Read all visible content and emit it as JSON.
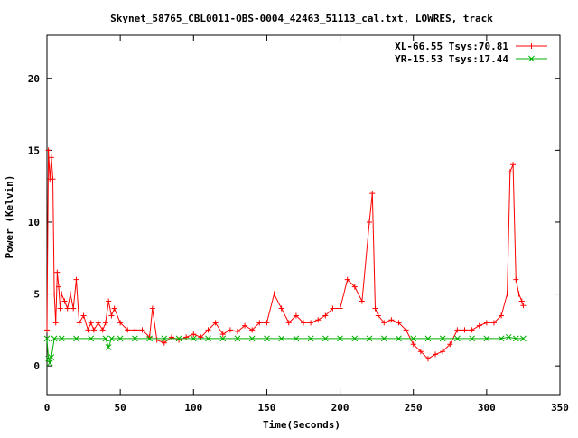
{
  "chart_data": {
    "type": "line",
    "title": "Skynet_58765_CBL0011-OBS-0004_42463_51113_cal.txt, LOWRES, track",
    "xlabel": "Time(Seconds)",
    "ylabel": "Power (Kelvin)",
    "xlim": [
      0,
      350
    ],
    "ylim": [
      -2,
      23
    ],
    "xticks": [
      0,
      50,
      100,
      150,
      200,
      250,
      300,
      350
    ],
    "yticks": [
      0,
      5,
      10,
      15,
      20
    ],
    "grid": false,
    "legend_position": "top-right",
    "series": [
      {
        "name": "XL-66.55 Tsys:70.81",
        "color": "#ff0000",
        "marker": "plus",
        "x": [
          0,
          1,
          2,
          3,
          4,
          5,
          6,
          7,
          8,
          9,
          10,
          12,
          14,
          16,
          18,
          20,
          22,
          25,
          28,
          30,
          32,
          35,
          38,
          40,
          42,
          44,
          46,
          50,
          55,
          60,
          65,
          70,
          72,
          75,
          80,
          85,
          90,
          95,
          100,
          105,
          110,
          115,
          120,
          125,
          130,
          135,
          140,
          145,
          150,
          155,
          160,
          165,
          170,
          175,
          180,
          185,
          190,
          195,
          200,
          205,
          210,
          215,
          220,
          222,
          224,
          226,
          230,
          235,
          240,
          245,
          250,
          255,
          260,
          265,
          270,
          275,
          280,
          285,
          290,
          295,
          300,
          305,
          310,
          314,
          316,
          318,
          320,
          322,
          324,
          325
        ],
        "values": [
          2.5,
          15.0,
          13.0,
          14.5,
          13.0,
          5.0,
          3.0,
          6.5,
          5.5,
          4.0,
          5.0,
          4.5,
          4.0,
          5.0,
          4.0,
          6.0,
          3.0,
          3.5,
          2.5,
          3.0,
          2.5,
          3.0,
          2.5,
          3.0,
          4.5,
          3.5,
          4.0,
          3.0,
          2.5,
          2.5,
          2.5,
          2.0,
          4.0,
          1.8,
          1.6,
          2.0,
          1.8,
          2.0,
          2.2,
          2.0,
          2.5,
          3.0,
          2.2,
          2.5,
          2.4,
          2.8,
          2.5,
          3.0,
          3.0,
          5.0,
          4.0,
          3.0,
          3.5,
          3.0,
          3.0,
          3.2,
          3.5,
          4.0,
          4.0,
          6.0,
          5.5,
          4.5,
          10.0,
          12.0,
          4.0,
          3.5,
          3.0,
          3.2,
          3.0,
          2.5,
          1.5,
          1.0,
          0.5,
          0.8,
          1.0,
          1.5,
          2.5,
          2.5,
          2.5,
          2.8,
          3.0,
          3.0,
          3.5,
          5.0,
          13.5,
          14.0,
          6.0,
          5.0,
          4.5,
          4.2
        ]
      },
      {
        "name": "YR-15.53 Tsys:17.44",
        "color": "#00b000",
        "marker": "cross",
        "x": [
          0,
          1,
          2,
          3,
          5,
          10,
          20,
          30,
          40,
          42,
          44,
          50,
          60,
          70,
          80,
          90,
          100,
          110,
          120,
          130,
          140,
          150,
          160,
          170,
          180,
          190,
          200,
          210,
          220,
          230,
          240,
          250,
          260,
          270,
          280,
          290,
          300,
          310,
          315,
          320,
          325
        ],
        "values": [
          1.9,
          0.5,
          0.2,
          0.6,
          1.9,
          1.9,
          1.9,
          1.9,
          1.9,
          1.3,
          1.9,
          1.9,
          1.9,
          1.9,
          1.9,
          1.9,
          1.9,
          1.9,
          1.9,
          1.9,
          1.9,
          1.9,
          1.9,
          1.9,
          1.9,
          1.9,
          1.9,
          1.9,
          1.9,
          1.9,
          1.9,
          1.9,
          1.9,
          1.9,
          1.9,
          1.9,
          1.9,
          1.9,
          2.0,
          1.9,
          1.9
        ]
      }
    ]
  }
}
